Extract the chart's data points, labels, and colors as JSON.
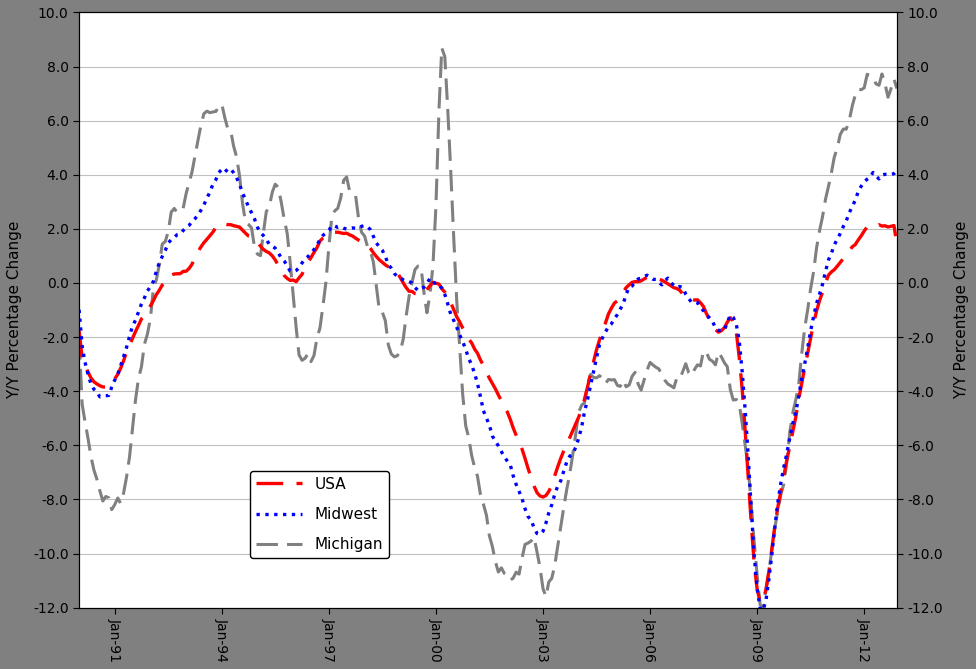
{
  "ylabel_left": "Y/Y Percentage Change",
  "ylabel_right": "Y/Y Percentage Change",
  "ylim": [
    -12.0,
    10.0
  ],
  "yticks": [
    -12.0,
    -10.0,
    -8.0,
    -6.0,
    -4.0,
    -2.0,
    0.0,
    2.0,
    4.0,
    6.0,
    8.0,
    10.0
  ],
  "xtick_labels": [
    "Jan-91",
    "Jan-94",
    "Jan-97",
    "Jan-00",
    "Jan-03",
    "Jan-06",
    "Jan-09",
    "Jan-12"
  ],
  "xtick_years": [
    1991,
    1994,
    1997,
    2000,
    2003,
    2006,
    2009,
    2012
  ],
  "background_color": "#808080",
  "plot_bg_color": "#ffffff",
  "usa_color": "#ff0000",
  "midwest_color": "#0000ff",
  "michigan_color": "#808080",
  "legend_labels": [
    "USA",
    "Midwest",
    "Michigan"
  ],
  "usa_idx": [
    0,
    6,
    12,
    18,
    24,
    30,
    36,
    42,
    48,
    54,
    60,
    66,
    72,
    78,
    84,
    90,
    96,
    102,
    108,
    114,
    120,
    126,
    132,
    138,
    144,
    150,
    156,
    162,
    168,
    174,
    180,
    186,
    192,
    198,
    204,
    210,
    216,
    222,
    228,
    234,
    240,
    246,
    252,
    258,
    264,
    270,
    275
  ],
  "usa_val": [
    -2.5,
    -3.8,
    -3.5,
    -2.0,
    -0.8,
    0.2,
    0.5,
    1.5,
    2.2,
    2.0,
    1.5,
    0.8,
    0.0,
    1.0,
    1.8,
    1.8,
    1.5,
    0.8,
    0.2,
    -0.5,
    0.0,
    -1.0,
    -2.2,
    -3.5,
    -4.8,
    -6.5,
    -8.0,
    -6.5,
    -5.0,
    -2.5,
    -0.8,
    0.0,
    0.2,
    0.0,
    -0.5,
    -1.0,
    -1.8,
    -2.5,
    -11.5,
    -9.0,
    -5.5,
    -2.0,
    0.2,
    1.0,
    2.0,
    2.1,
    2.2
  ],
  "mw_idx": [
    0,
    6,
    12,
    18,
    24,
    30,
    36,
    42,
    48,
    54,
    60,
    66,
    72,
    78,
    84,
    90,
    96,
    102,
    108,
    114,
    120,
    126,
    132,
    138,
    144,
    150,
    156,
    162,
    168,
    174,
    180,
    186,
    192,
    198,
    204,
    210,
    216,
    222,
    228,
    234,
    240,
    246,
    252,
    258,
    264,
    270,
    275
  ],
  "mw_val": [
    -2.0,
    -4.2,
    -3.5,
    -1.5,
    0.0,
    1.5,
    2.0,
    3.0,
    4.2,
    3.5,
    2.0,
    1.2,
    0.5,
    1.2,
    2.0,
    2.0,
    2.0,
    1.0,
    0.2,
    -0.2,
    0.0,
    -1.5,
    -3.2,
    -5.5,
    -6.8,
    -8.5,
    -9.0,
    -7.0,
    -5.5,
    -2.5,
    -1.2,
    0.0,
    0.2,
    0.0,
    -0.5,
    -1.0,
    -1.8,
    -2.5,
    -11.8,
    -8.5,
    -5.0,
    -1.5,
    1.0,
    2.5,
    3.8,
    4.0,
    4.2
  ],
  "mi_idx": [
    0,
    5,
    10,
    14,
    18,
    22,
    26,
    30,
    36,
    40,
    44,
    48,
    52,
    56,
    60,
    63,
    66,
    69,
    72,
    76,
    80,
    84,
    88,
    92,
    96,
    100,
    104,
    108,
    112,
    116,
    118,
    119,
    120,
    121,
    122,
    123,
    124,
    125,
    128,
    132,
    136,
    140,
    144,
    148,
    152,
    156,
    160,
    164,
    168,
    172,
    176,
    180,
    184,
    188,
    192,
    196,
    200,
    204,
    208,
    212,
    216,
    220,
    224,
    228,
    232,
    236,
    240,
    244,
    248,
    252,
    256,
    260,
    264,
    268,
    272,
    275
  ],
  "mi_val": [
    -4.5,
    -7.0,
    -8.5,
    -7.5,
    -5.0,
    -2.0,
    0.5,
    2.0,
    3.5,
    5.5,
    6.5,
    6.3,
    4.5,
    2.5,
    1.0,
    2.5,
    3.5,
    2.0,
    -1.5,
    -2.8,
    -2.0,
    2.0,
    3.5,
    3.5,
    1.5,
    -0.5,
    -2.5,
    -2.2,
    0.5,
    -0.5,
    -0.5,
    2.0,
    4.5,
    8.5,
    9.5,
    8.0,
    5.5,
    2.5,
    -3.5,
    -6.5,
    -8.5,
    -10.5,
    -10.8,
    -10.5,
    -9.0,
    -11.5,
    -10.0,
    -7.5,
    -4.5,
    -3.5,
    -3.5,
    -3.5,
    -4.0,
    -3.5,
    -3.0,
    -3.2,
    -3.5,
    -3.5,
    -3.0,
    -3.0,
    -3.0,
    -4.5,
    -6.0,
    -11.5,
    -10.5,
    -7.5,
    -4.5,
    -1.5,
    1.5,
    4.0,
    5.5,
    6.5,
    7.5,
    7.2,
    7.0,
    7.0
  ]
}
